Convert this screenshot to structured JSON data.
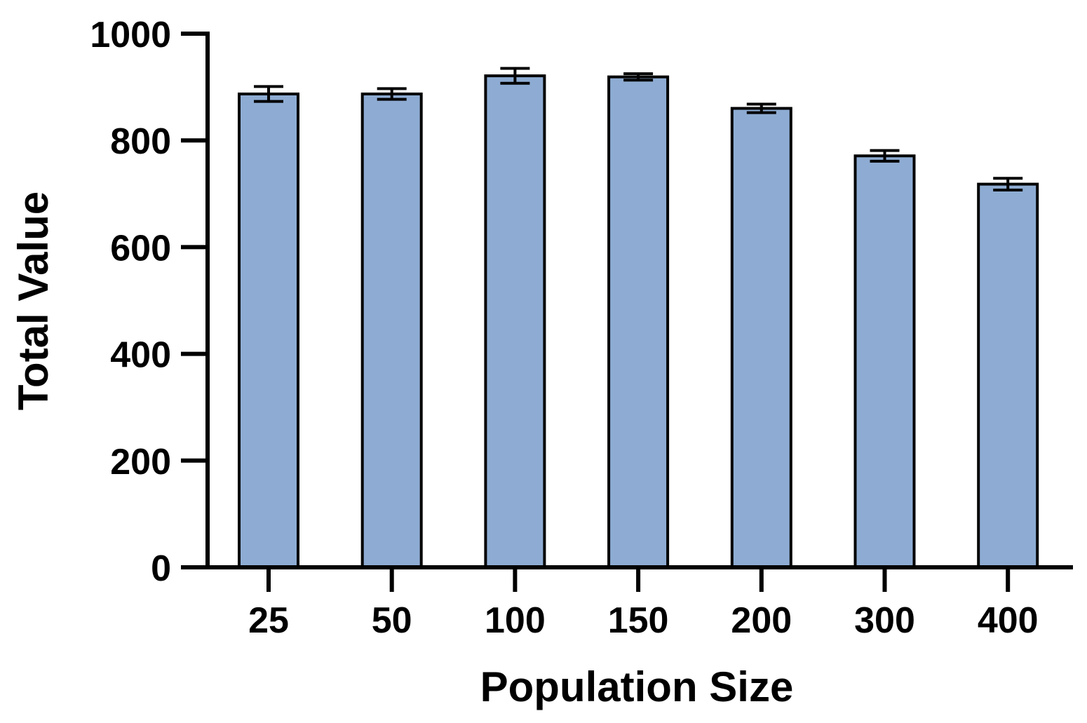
{
  "chart_data": {
    "type": "bar",
    "categories": [
      "25",
      "50",
      "100",
      "150",
      "200",
      "300",
      "400"
    ],
    "series": [
      {
        "values": [
          887,
          887,
          921,
          919,
          860,
          771,
          718
        ],
        "errors": [
          14,
          10,
          14,
          6,
          8,
          10,
          11
        ]
      }
    ],
    "title": "",
    "xlabel": "Population Size",
    "ylabel": "Total Value",
    "ylim": [
      0,
      1000
    ],
    "yticks": [
      0,
      200,
      400,
      600,
      800,
      1000
    ],
    "grid": false,
    "bar_color": "#8eacd3",
    "edge_color": "#000000"
  }
}
